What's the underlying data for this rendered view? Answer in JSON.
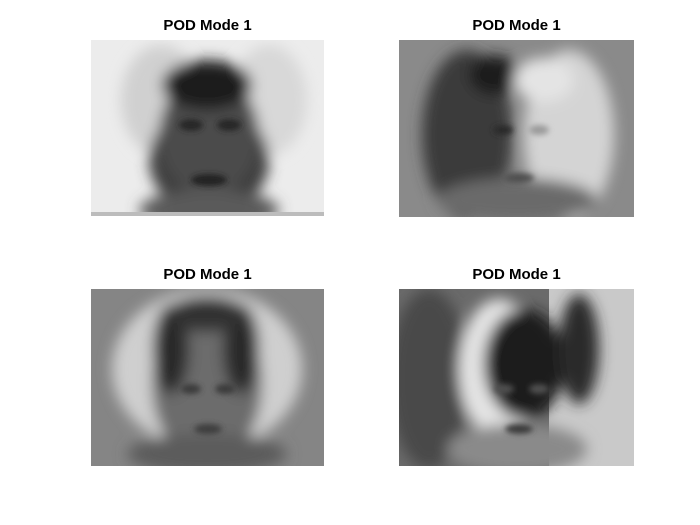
{
  "figure": {
    "background": "#ffffff",
    "subplots": [
      {
        "title": "POD Mode 1",
        "description": "grayscale eigenface, light background with dark blurred face",
        "palette": "gray"
      },
      {
        "title": "POD Mode 1",
        "description": "grayscale eigenface, split dark/light halves",
        "palette": "gray"
      },
      {
        "title": "POD Mode 1",
        "description": "grayscale eigenface, dark center with light halo",
        "palette": "gray"
      },
      {
        "title": "POD Mode 1",
        "description": "grayscale eigenface, dark face with bright left halo",
        "palette": "gray"
      }
    ]
  }
}
